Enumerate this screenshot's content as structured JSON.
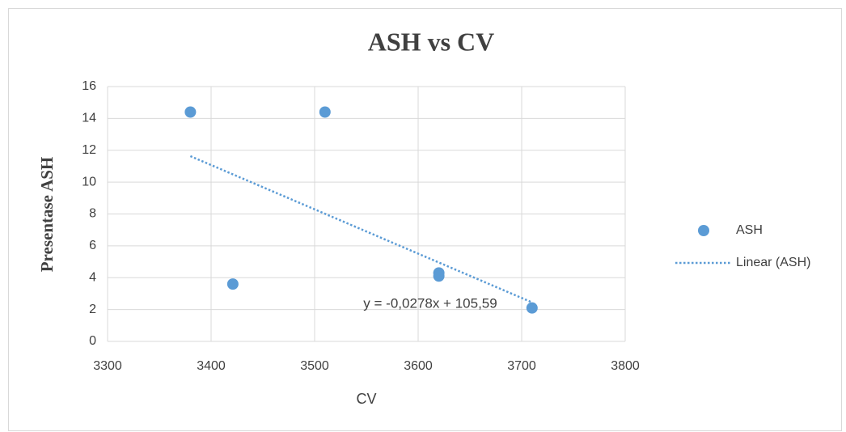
{
  "chart_data": {
    "type": "scatter",
    "title": "ASH vs CV",
    "x_label": "CV",
    "y_label": "Presentase ASH",
    "series": [
      {
        "name": "ASH",
        "color": "#5b9bd5",
        "x": [
          3380,
          3421,
          3510,
          3620,
          3620,
          3710
        ],
        "values": [
          14.4,
          3.6,
          14.4,
          4.3,
          4.1,
          2.1
        ]
      },
      {
        "name": "Linear (ASH)",
        "color": "#5b9bd5",
        "style": "dotted",
        "x": [
          3380,
          3710
        ],
        "values": [
          11.63,
          2.45
        ]
      }
    ],
    "annotations": [
      "y = -0,0278x + 105,59"
    ],
    "xlim": [
      3300,
      3800
    ],
    "xticks": [
      3300,
      3400,
      3500,
      3600,
      3700,
      3800
    ],
    "ylim": [
      0,
      16
    ],
    "yticks": [
      0,
      2,
      4,
      6,
      8,
      10,
      12,
      14,
      16
    ],
    "grid": true,
    "legend": "right"
  }
}
